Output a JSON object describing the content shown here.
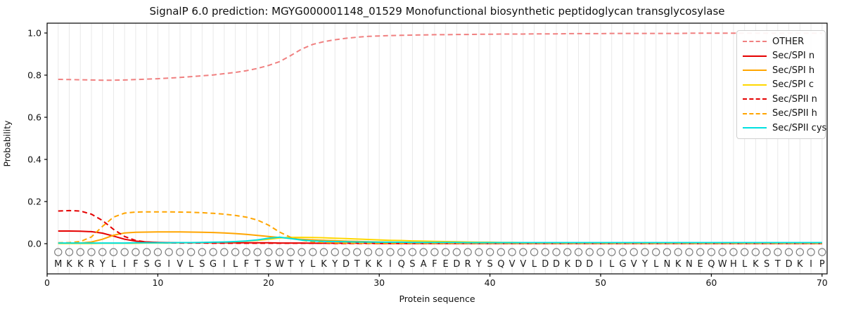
{
  "title": "SignalP 6.0 prediction: MGYG000001148_01529 Monofunctional biosynthetic peptidoglycan transglycosylase",
  "axes": {
    "x_label": "Protein sequence",
    "y_label": "Probability",
    "x_ticks": [
      0,
      10,
      20,
      30,
      40,
      50,
      60,
      70
    ],
    "y_tick_labels": [
      "0.0",
      "0.2",
      "0.4",
      "0.6",
      "0.8",
      "1.0"
    ],
    "y_tick_values": [
      0.0,
      0.2,
      0.4,
      0.6,
      0.8,
      1.0
    ]
  },
  "sequence": "MKKRYLIFSGIVLSGILFTSWTYLKYDTKKIQSAFEDRYSQVVLDDKDDILGVYLNKNEQWHLKSTDKIP",
  "legend": {
    "items": [
      {
        "label": "OTHER",
        "color": "#f08080",
        "dash": true
      },
      {
        "label": "Sec/SPI n",
        "color": "#e50000",
        "dash": false
      },
      {
        "label": "Sec/SPI h",
        "color": "#ffa500",
        "dash": false
      },
      {
        "label": "Sec/SPI c",
        "color": "#ffd700",
        "dash": false
      },
      {
        "label": "Sec/SPII n",
        "color": "#e50000",
        "dash": true
      },
      {
        "label": "Sec/SPII h",
        "color": "#ffa500",
        "dash": true
      },
      {
        "label": "Sec/SPII cys",
        "color": "#00e0e0",
        "dash": false
      }
    ]
  },
  "chart_data": {
    "type": "line",
    "title": "SignalP 6.0 prediction: MGYG000001148_01529 Monofunctional biosynthetic peptidoglycan transglycosylase",
    "xlabel": "Protein sequence",
    "ylabel": "Probability",
    "xlim": [
      0,
      70.5
    ],
    "ylim_shown": [
      0.0,
      1.0
    ],
    "grid": "vertical gridline at every residue position",
    "legend_position": "upper right",
    "x_positions": "residue index 1-70, one value per letter of sequence",
    "series": [
      {
        "name": "OTHER",
        "color": "#f08080",
        "style": "dashed",
        "values": [
          0.78,
          0.779,
          0.778,
          0.777,
          0.776,
          0.776,
          0.777,
          0.779,
          0.781,
          0.783,
          0.786,
          0.789,
          0.793,
          0.797,
          0.801,
          0.807,
          0.813,
          0.821,
          0.832,
          0.846,
          0.864,
          0.893,
          0.924,
          0.946,
          0.959,
          0.968,
          0.975,
          0.98,
          0.984,
          0.986,
          0.988,
          0.989,
          0.99,
          0.991,
          0.992,
          0.992,
          0.993,
          0.993,
          0.994,
          0.994,
          0.995,
          0.995,
          0.995,
          0.996,
          0.996,
          0.996,
          0.997,
          0.997,
          0.997,
          0.997,
          0.998,
          0.998,
          0.998,
          0.998,
          0.998,
          0.998,
          0.998,
          0.999,
          0.999,
          0.999,
          0.999,
          0.999,
          0.999,
          0.999,
          0.999,
          0.999,
          0.999,
          0.999,
          0.999,
          0.999
        ]
      },
      {
        "name": "Sec/SPI n",
        "color": "#e50000",
        "style": "solid",
        "values": [
          0.06,
          0.06,
          0.059,
          0.057,
          0.05,
          0.036,
          0.021,
          0.012,
          0.008,
          0.006,
          0.005,
          0.005,
          0.004,
          0.004,
          0.004,
          0.004,
          0.004,
          0.004,
          0.004,
          0.004,
          0.003,
          0.003,
          0.003,
          0.002,
          0.002,
          0.002,
          0.002,
          0.002,
          0.002,
          0.001,
          0.001,
          0.001,
          0.001,
          0.001,
          0.001,
          0.001,
          0.001,
          0.001,
          0.001,
          0.001,
          0.001,
          0.001,
          0.001,
          0.001,
          0.001,
          0.001,
          0.001,
          0.001,
          0.001,
          0.001,
          0.001,
          0.001,
          0.001,
          0.001,
          0.001,
          0.001,
          0.001,
          0.001,
          0.001,
          0.001,
          0.001,
          0.001,
          0.001,
          0.001,
          0.001,
          0.001,
          0.001,
          0.001,
          0.001,
          0.001
        ]
      },
      {
        "name": "Sec/SPI h",
        "color": "#ffa500",
        "style": "solid",
        "values": [
          0.002,
          0.002,
          0.003,
          0.008,
          0.021,
          0.04,
          0.051,
          0.054,
          0.055,
          0.056,
          0.056,
          0.056,
          0.055,
          0.054,
          0.053,
          0.051,
          0.048,
          0.044,
          0.039,
          0.034,
          0.029,
          0.025,
          0.021,
          0.018,
          0.016,
          0.014,
          0.012,
          0.011,
          0.009,
          0.008,
          0.007,
          0.006,
          0.006,
          0.005,
          0.004,
          0.004,
          0.003,
          0.003,
          0.003,
          0.003,
          0.002,
          0.002,
          0.002,
          0.002,
          0.002,
          0.002,
          0.002,
          0.002,
          0.002,
          0.002,
          0.002,
          0.002,
          0.002,
          0.002,
          0.002,
          0.002,
          0.002,
          0.002,
          0.002,
          0.002,
          0.002,
          0.002,
          0.002,
          0.002,
          0.002,
          0.002,
          0.002,
          0.002,
          0.002,
          0.002
        ]
      },
      {
        "name": "Sec/SPI c",
        "color": "#ffd700",
        "style": "solid",
        "values": [
          0.001,
          0.001,
          0.001,
          0.001,
          0.002,
          0.002,
          0.002,
          0.002,
          0.003,
          0.003,
          0.003,
          0.004,
          0.004,
          0.005,
          0.006,
          0.007,
          0.009,
          0.012,
          0.016,
          0.021,
          0.027,
          0.03,
          0.03,
          0.029,
          0.028,
          0.026,
          0.024,
          0.022,
          0.02,
          0.018,
          0.016,
          0.015,
          0.013,
          0.012,
          0.011,
          0.01,
          0.009,
          0.008,
          0.007,
          0.007,
          0.006,
          0.006,
          0.005,
          0.005,
          0.005,
          0.004,
          0.004,
          0.004,
          0.004,
          0.004,
          0.003,
          0.003,
          0.003,
          0.003,
          0.003,
          0.003,
          0.003,
          0.003,
          0.003,
          0.003,
          0.003,
          0.003,
          0.003,
          0.003,
          0.003,
          0.003,
          0.003,
          0.003,
          0.003,
          0.003
        ]
      },
      {
        "name": "Sec/SPII n",
        "color": "#e50000",
        "style": "dashed",
        "values": [
          0.155,
          0.157,
          0.155,
          0.14,
          0.11,
          0.068,
          0.034,
          0.015,
          0.008,
          0.005,
          0.004,
          0.003,
          0.003,
          0.003,
          0.002,
          0.002,
          0.002,
          0.002,
          0.002,
          0.002,
          0.002,
          0.002,
          0.002,
          0.002,
          0.002,
          0.001,
          0.001,
          0.001,
          0.001,
          0.001,
          0.001,
          0.001,
          0.001,
          0.001,
          0.001,
          0.001,
          0.001,
          0.001,
          0.001,
          0.001,
          0.001,
          0.001,
          0.001,
          0.001,
          0.001,
          0.001,
          0.001,
          0.001,
          0.001,
          0.001,
          0.001,
          0.001,
          0.001,
          0.001,
          0.001,
          0.001,
          0.001,
          0.001,
          0.001,
          0.001,
          0.001,
          0.001,
          0.001,
          0.001,
          0.001,
          0.001,
          0.001,
          0.001,
          0.001,
          0.001
        ]
      },
      {
        "name": "Sec/SPII h",
        "color": "#ffa500",
        "style": "dashed",
        "values": [
          0.004,
          0.005,
          0.01,
          0.032,
          0.082,
          0.126,
          0.145,
          0.15,
          0.151,
          0.151,
          0.151,
          0.15,
          0.149,
          0.147,
          0.144,
          0.14,
          0.134,
          0.126,
          0.112,
          0.088,
          0.055,
          0.03,
          0.016,
          0.009,
          0.006,
          0.004,
          0.003,
          0.003,
          0.002,
          0.002,
          0.002,
          0.002,
          0.002,
          0.002,
          0.002,
          0.002,
          0.002,
          0.002,
          0.002,
          0.002,
          0.002,
          0.002,
          0.002,
          0.002,
          0.002,
          0.002,
          0.002,
          0.002,
          0.002,
          0.002,
          0.002,
          0.002,
          0.002,
          0.002,
          0.002,
          0.002,
          0.002,
          0.002,
          0.002,
          0.002,
          0.002,
          0.002,
          0.002,
          0.002,
          0.002,
          0.002,
          0.002,
          0.002,
          0.002,
          0.002
        ]
      },
      {
        "name": "Sec/SPII cys",
        "color": "#00e0e0",
        "style": "solid",
        "values": [
          0.003,
          0.003,
          0.003,
          0.003,
          0.003,
          0.003,
          0.003,
          0.004,
          0.004,
          0.004,
          0.004,
          0.005,
          0.005,
          0.006,
          0.007,
          0.008,
          0.01,
          0.013,
          0.018,
          0.026,
          0.031,
          0.024,
          0.017,
          0.013,
          0.011,
          0.01,
          0.009,
          0.008,
          0.008,
          0.007,
          0.007,
          0.007,
          0.006,
          0.006,
          0.006,
          0.006,
          0.006,
          0.005,
          0.005,
          0.005,
          0.005,
          0.005,
          0.005,
          0.005,
          0.005,
          0.005,
          0.005,
          0.005,
          0.005,
          0.005,
          0.005,
          0.005,
          0.005,
          0.005,
          0.005,
          0.005,
          0.005,
          0.005,
          0.005,
          0.005,
          0.005,
          0.005,
          0.005,
          0.005,
          0.005,
          0.005,
          0.005,
          0.005,
          0.005,
          0.005
        ]
      }
    ]
  }
}
